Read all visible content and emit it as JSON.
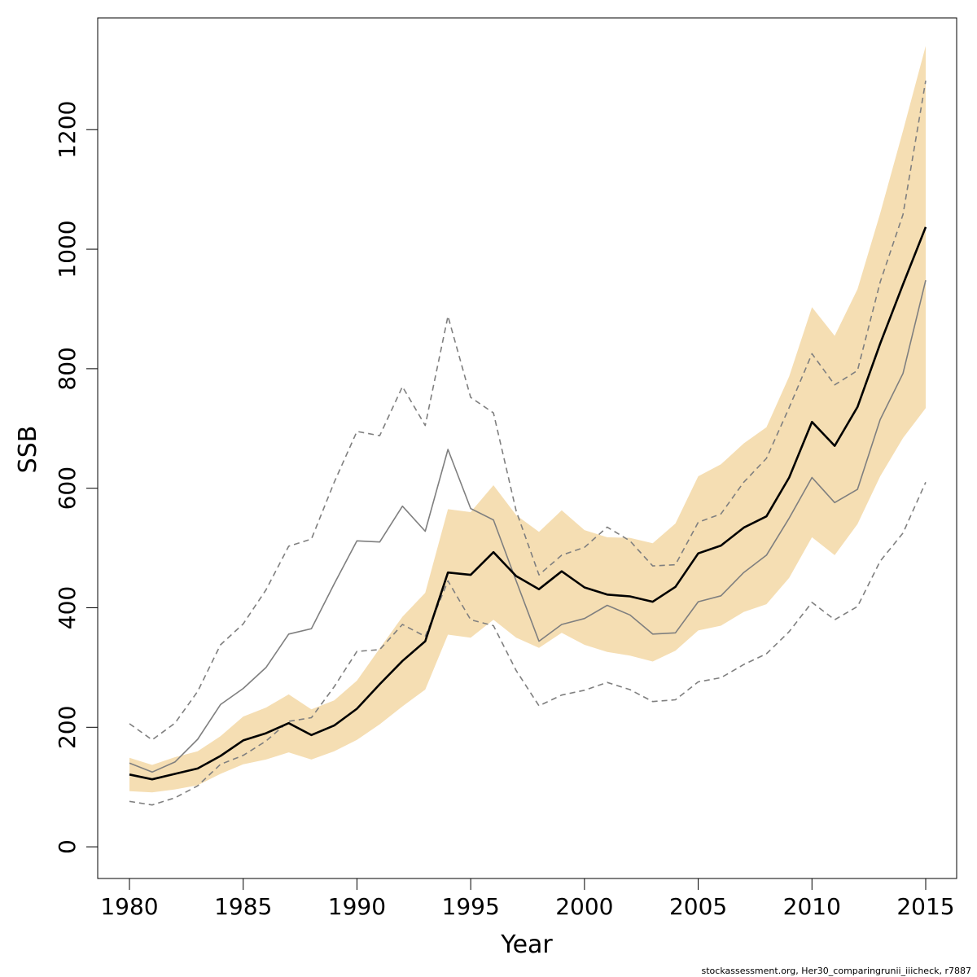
{
  "chart_data": {
    "type": "line",
    "xlabel": "Year",
    "ylabel": "SSB",
    "xlim": [
      1978.6,
      1980.0
    ],
    "x_ticks": [
      1980,
      1985,
      1990,
      1995,
      2000,
      2005,
      2010,
      2015
    ],
    "x_tick_labels": [
      "1980",
      "1985",
      "1990",
      "1995",
      "2000",
      "2005",
      "2010",
      "2015"
    ],
    "ylim": [
      -53,
      1387
    ],
    "y_ticks": [
      0,
      200,
      400,
      600,
      800,
      1000,
      1200
    ],
    "y_tick_labels": [
      "0",
      "200",
      "400",
      "600",
      "800",
      "1000",
      "1200"
    ],
    "grid": false,
    "colors": {
      "band": "#f5deb3",
      "main_line": "#000000",
      "alt_line": "#7f7f7f",
      "alt_dashed": "#7f7f7f"
    },
    "x": [
      1980,
      1981,
      1982,
      1983,
      1984,
      1985,
      1986,
      1987,
      1988,
      1989,
      1990,
      1991,
      1992,
      1993,
      1994,
      1995,
      1996,
      1997,
      1998,
      1999,
      2000,
      2001,
      2002,
      2003,
      2004,
      2005,
      2006,
      2007,
      2008,
      2009,
      2010,
      2011,
      2012,
      2013,
      2014,
      2015
    ],
    "series": [
      {
        "role": "band_upper",
        "values": [
          149,
          137,
          150,
          160,
          185,
          218,
          233,
          255,
          230,
          245,
          278,
          332,
          385,
          425,
          565,
          560,
          605,
          555,
          527,
          563,
          530,
          518,
          517,
          508,
          541,
          620,
          640,
          675,
          702,
          787,
          903,
          855,
          933,
          1060,
          1198,
          1340
        ]
      },
      {
        "role": "band_lower",
        "values": [
          93,
          91,
          96,
          103,
          122,
          138,
          146,
          158,
          146,
          160,
          179,
          205,
          235,
          263,
          355,
          350,
          380,
          350,
          333,
          358,
          338,
          326,
          320,
          310,
          328,
          362,
          370,
          393,
          406,
          450,
          518,
          488,
          540,
          620,
          684,
          734
        ]
      },
      {
        "role": "main_line",
        "values": [
          121,
          113,
          122,
          131,
          152,
          178,
          190,
          207,
          187,
          203,
          231,
          272,
          311,
          344,
          459,
          455,
          493,
          453,
          431,
          461,
          434,
          422,
          419,
          410,
          435,
          491,
          504,
          534,
          553,
          618,
          711,
          671,
          736,
          842,
          941,
          1037
        ]
      },
      {
        "role": "alt_line",
        "values": [
          140,
          125,
          142,
          180,
          238,
          265,
          300,
          356,
          365,
          440,
          512,
          510,
          570,
          528,
          665,
          566,
          547,
          445,
          344,
          372,
          382,
          404,
          388,
          356,
          358,
          410,
          420,
          459,
          488,
          550,
          618,
          576,
          598,
          715,
          792,
          948
        ]
      },
      {
        "role": "alt_upper_dashed",
        "values": [
          206,
          179,
          207,
          260,
          338,
          373,
          430,
          503,
          515,
          610,
          695,
          688,
          770,
          705,
          888,
          752,
          726,
          562,
          455,
          488,
          501,
          535,
          512,
          470,
          472,
          543,
          557,
          610,
          650,
          735,
          825,
          773,
          797,
          945,
          1058,
          1282
        ]
      },
      {
        "role": "alt_lower_dashed",
        "values": [
          76,
          70,
          82,
          102,
          138,
          153,
          177,
          210,
          216,
          268,
          327,
          330,
          372,
          352,
          445,
          380,
          370,
          295,
          236,
          254,
          262,
          275,
          263,
          243,
          246,
          276,
          283,
          305,
          323,
          360,
          409,
          380,
          402,
          478,
          525,
          610
        ]
      }
    ]
  },
  "footer": {
    "text": "stockassessment.org, Her30_comparingrunii_iiicheck, r7887"
  }
}
